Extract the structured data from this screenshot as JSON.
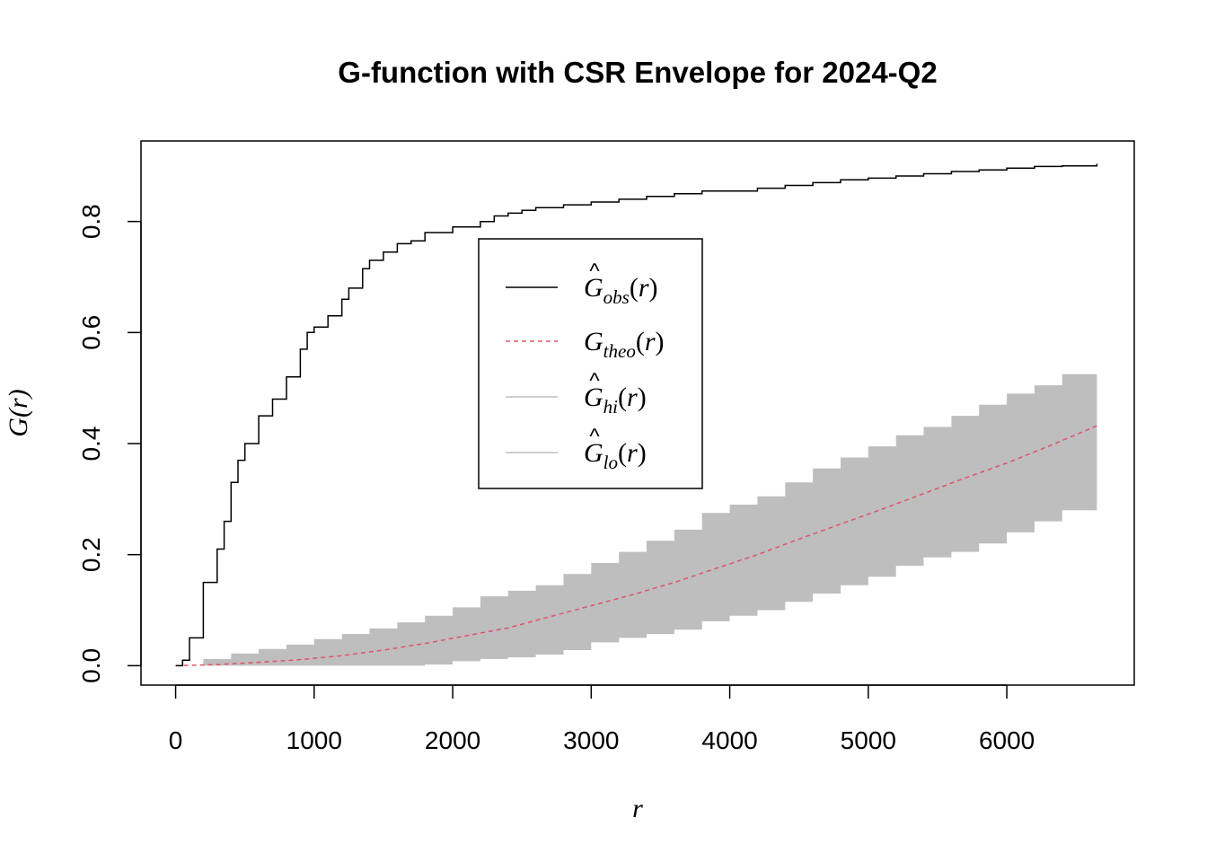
{
  "chart_data": {
    "type": "line",
    "title": "G-function with CSR Envelope for 2024-Q2",
    "xlabel": "r",
    "ylabel": "G(r)",
    "xlim": [
      -250,
      6920
    ],
    "ylim": [
      -0.035,
      0.945
    ],
    "x_ticks": [
      0,
      1000,
      2000,
      3000,
      4000,
      5000,
      6000
    ],
    "y_ticks": [
      0.0,
      0.2,
      0.4,
      0.6,
      0.8
    ],
    "x_tick_labels": [
      "0",
      "1000",
      "2000",
      "3000",
      "4000",
      "5000",
      "6000"
    ],
    "y_tick_labels": [
      "0.0",
      "0.2",
      "0.4",
      "0.6",
      "0.8"
    ],
    "legend_position": "center-left",
    "colors": {
      "obs": "#000000",
      "theo": "#DF536B",
      "envelope": "#BEBEBE"
    },
    "legend": [
      {
        "key": "obs",
        "base": "G",
        "hat": true,
        "sub": "obs",
        "arg": "r",
        "style": "solid",
        "color": "#000000"
      },
      {
        "key": "theo",
        "base": "G",
        "hat": false,
        "sub": "theo",
        "arg": "r",
        "style": "dashed",
        "color": "#DF536B"
      },
      {
        "key": "hi",
        "base": "G",
        "hat": true,
        "sub": "hi",
        "arg": "r",
        "style": "solid",
        "color": "#BEBEBE"
      },
      {
        "key": "lo",
        "base": "G",
        "hat": true,
        "sub": "lo",
        "arg": "r",
        "style": "solid",
        "color": "#BEBEBE"
      }
    ],
    "series": [
      {
        "key": "obs",
        "x": [
          0,
          50,
          100,
          200,
          300,
          350,
          400,
          450,
          500,
          600,
          700,
          800,
          900,
          950,
          1000,
          1100,
          1200,
          1250,
          1300,
          1350,
          1400,
          1500,
          1600,
          1700,
          1800,
          1900,
          2000,
          2100,
          2200,
          2300,
          2400,
          2500,
          2600,
          2800,
          3000,
          3200,
          3400,
          3600,
          3800,
          4000,
          4200,
          4400,
          4600,
          4800,
          5000,
          5200,
          5400,
          5600,
          5800,
          6000,
          6200,
          6400,
          6650
        ],
        "y": [
          0.0,
          0.01,
          0.05,
          0.15,
          0.21,
          0.26,
          0.33,
          0.37,
          0.4,
          0.45,
          0.48,
          0.52,
          0.57,
          0.6,
          0.61,
          0.63,
          0.66,
          0.68,
          0.68,
          0.715,
          0.73,
          0.745,
          0.76,
          0.765,
          0.78,
          0.78,
          0.79,
          0.79,
          0.8,
          0.81,
          0.815,
          0.82,
          0.825,
          0.83,
          0.835,
          0.84,
          0.845,
          0.85,
          0.855,
          0.855,
          0.86,
          0.865,
          0.87,
          0.875,
          0.878,
          0.882,
          0.886,
          0.89,
          0.893,
          0.896,
          0.899,
          0.9,
          0.904
        ]
      },
      {
        "key": "theo",
        "x": [
          0,
          300,
          600,
          900,
          1200,
          1500,
          1800,
          2100,
          2400,
          2700,
          3000,
          3300,
          3600,
          3900,
          4200,
          4500,
          4800,
          5100,
          5400,
          5700,
          6000,
          6300,
          6650
        ],
        "y": [
          0.0,
          0.002,
          0.006,
          0.011,
          0.018,
          0.028,
          0.04,
          0.054,
          0.068,
          0.088,
          0.108,
          0.128,
          0.15,
          0.175,
          0.2,
          0.228,
          0.255,
          0.282,
          0.31,
          0.338,
          0.365,
          0.395,
          0.432
        ]
      },
      {
        "key": "hi",
        "x": [
          0,
          200,
          400,
          600,
          800,
          1000,
          1200,
          1400,
          1600,
          1800,
          2000,
          2200,
          2400,
          2600,
          2800,
          3000,
          3200,
          3400,
          3600,
          3800,
          4000,
          4200,
          4400,
          4600,
          4800,
          5000,
          5200,
          5400,
          5600,
          5800,
          6000,
          6200,
          6400,
          6650
        ],
        "y": [
          0.0,
          0.012,
          0.022,
          0.03,
          0.038,
          0.048,
          0.057,
          0.067,
          0.078,
          0.09,
          0.105,
          0.125,
          0.135,
          0.145,
          0.165,
          0.185,
          0.205,
          0.225,
          0.245,
          0.275,
          0.29,
          0.305,
          0.33,
          0.355,
          0.375,
          0.395,
          0.415,
          0.43,
          0.45,
          0.47,
          0.49,
          0.505,
          0.525,
          0.545
        ]
      },
      {
        "key": "lo",
        "x": [
          0,
          600,
          1200,
          1800,
          2000,
          2200,
          2400,
          2600,
          2800,
          3000,
          3200,
          3400,
          3600,
          3800,
          4000,
          4200,
          4400,
          4600,
          4800,
          5000,
          5200,
          5400,
          5600,
          5800,
          6000,
          6200,
          6400,
          6650
        ],
        "y": [
          0.0,
          0.0,
          0.0,
          0.002,
          0.008,
          0.012,
          0.015,
          0.02,
          0.028,
          0.042,
          0.05,
          0.057,
          0.065,
          0.08,
          0.09,
          0.1,
          0.115,
          0.13,
          0.145,
          0.16,
          0.18,
          0.195,
          0.205,
          0.22,
          0.24,
          0.26,
          0.28,
          0.292
        ]
      }
    ]
  }
}
